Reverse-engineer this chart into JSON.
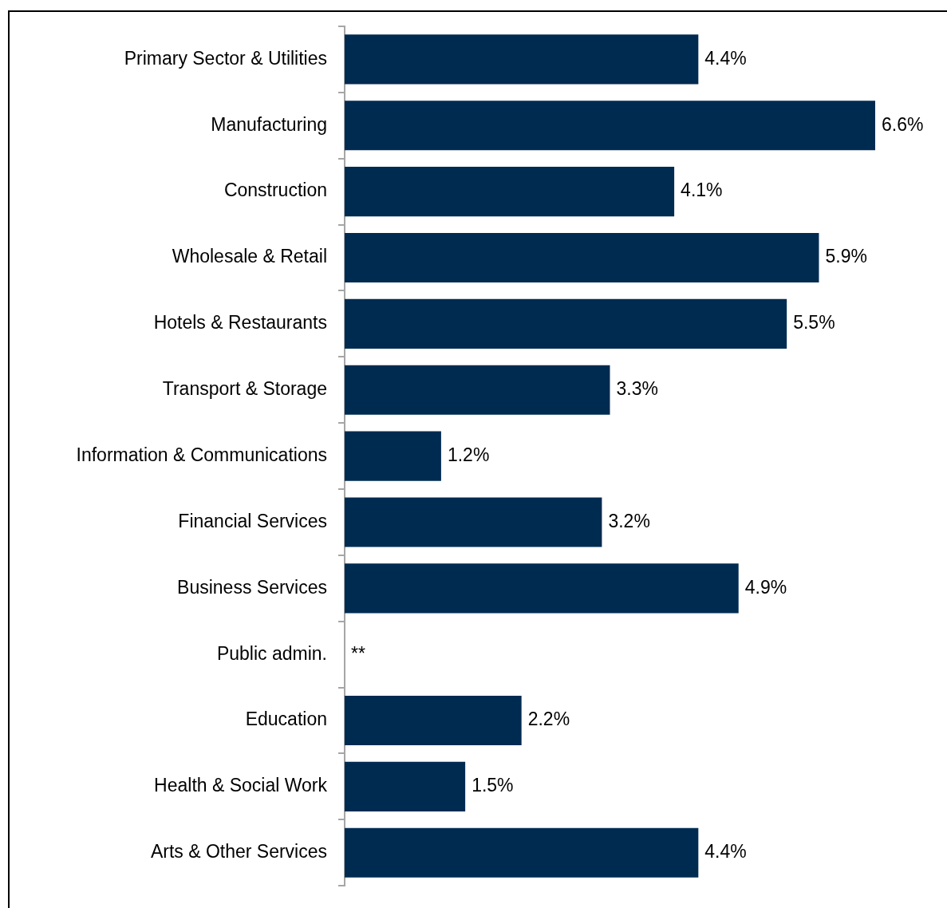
{
  "chart_data": {
    "type": "bar",
    "orientation": "horizontal",
    "categories": [
      "Primary Sector & Utilities",
      "Manufacturing",
      "Construction",
      "Wholesale & Retail",
      "Hotels & Restaurants",
      "Transport & Storage",
      "Information & Communications",
      "Financial Services",
      "Business Services",
      "Public admin.",
      "Education",
      "Health & Social Work",
      "Arts & Other Services"
    ],
    "values": [
      4.4,
      6.6,
      4.1,
      5.9,
      5.5,
      3.3,
      1.2,
      3.2,
      4.9,
      null,
      2.2,
      1.5,
      4.4
    ],
    "value_labels": [
      "4.4%",
      "6.6%",
      "4.1%",
      "5.9%",
      "5.5%",
      "3.3%",
      "1.2%",
      "3.2%",
      "4.9%",
      "**",
      "2.2%",
      "1.5%",
      "4.4%"
    ],
    "color": "#002b51",
    "tick_labels": "y",
    "grid": false,
    "legend": false
  }
}
